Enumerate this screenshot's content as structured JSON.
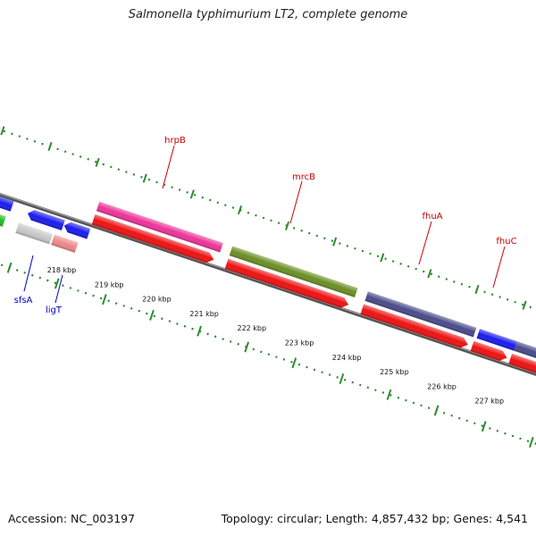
{
  "title": "Salmonella typhimurium LT2, complete genome",
  "footer": {
    "accession": "Accession: NC_003197",
    "summary": "Topology: circular; Length: 4,857,432 bp; Genes: 4,541"
  },
  "ticks": [
    "218 kbp",
    "219 kbp",
    "220 kbp",
    "221 kbp",
    "222 kbp",
    "223 kbp",
    "224 kbp",
    "225 kbp",
    "226 kbp",
    "227 kbp"
  ],
  "genes": {
    "hrpB": "hrpB",
    "mrcB": "mrcB",
    "fhuA": "fhuA",
    "fhuC": "fhuC",
    "sfsA": "sfsA",
    "ligT": "ligT"
  },
  "colors": {
    "backbone": "#7a7a7a",
    "tick": "#2e8b2e",
    "gene_label_red": "#cc0000",
    "gene_label_blue": "#0000cc",
    "cds": "#ee1111",
    "magenta": "#ee3399",
    "olive": "#6b8e23",
    "slate": "#4a4a8a",
    "blue": "#1a1aee",
    "green": "#22bb22",
    "grey": "#c8c8c8",
    "pink": "#ee8888"
  }
}
